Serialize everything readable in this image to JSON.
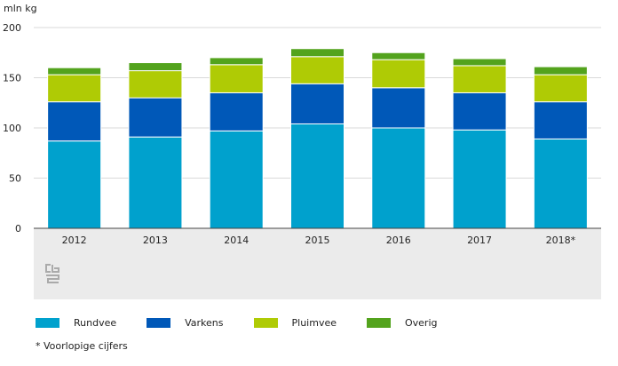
{
  "chart_data": {
    "type": "bar",
    "stacked": true,
    "unit_label": "mln kg",
    "categories": [
      "2012",
      "2013",
      "2014",
      "2015",
      "2016",
      "2017",
      "2018*"
    ],
    "ylim": [
      0,
      200
    ],
    "yticks": [
      0,
      50,
      100,
      150,
      200
    ],
    "grid": "horizontal",
    "legend_position": "bottom",
    "series": [
      {
        "name": "Rundvee",
        "color": "#00a1cd",
        "values": [
          87,
          91,
          97,
          104,
          100,
          98,
          89
        ]
      },
      {
        "name": "Varkens",
        "color": "#0058b8",
        "values": [
          39,
          39,
          38,
          40,
          40,
          37,
          37
        ]
      },
      {
        "name": "Pluimvee",
        "color": "#afcb05",
        "values": [
          27,
          27,
          28,
          27,
          28,
          27,
          27
        ]
      },
      {
        "name": "Overig",
        "color": "#53a31d",
        "values": [
          7,
          8,
          7,
          8,
          7,
          7,
          8
        ]
      }
    ]
  },
  "footnote": "* Voorlopige cijfers"
}
